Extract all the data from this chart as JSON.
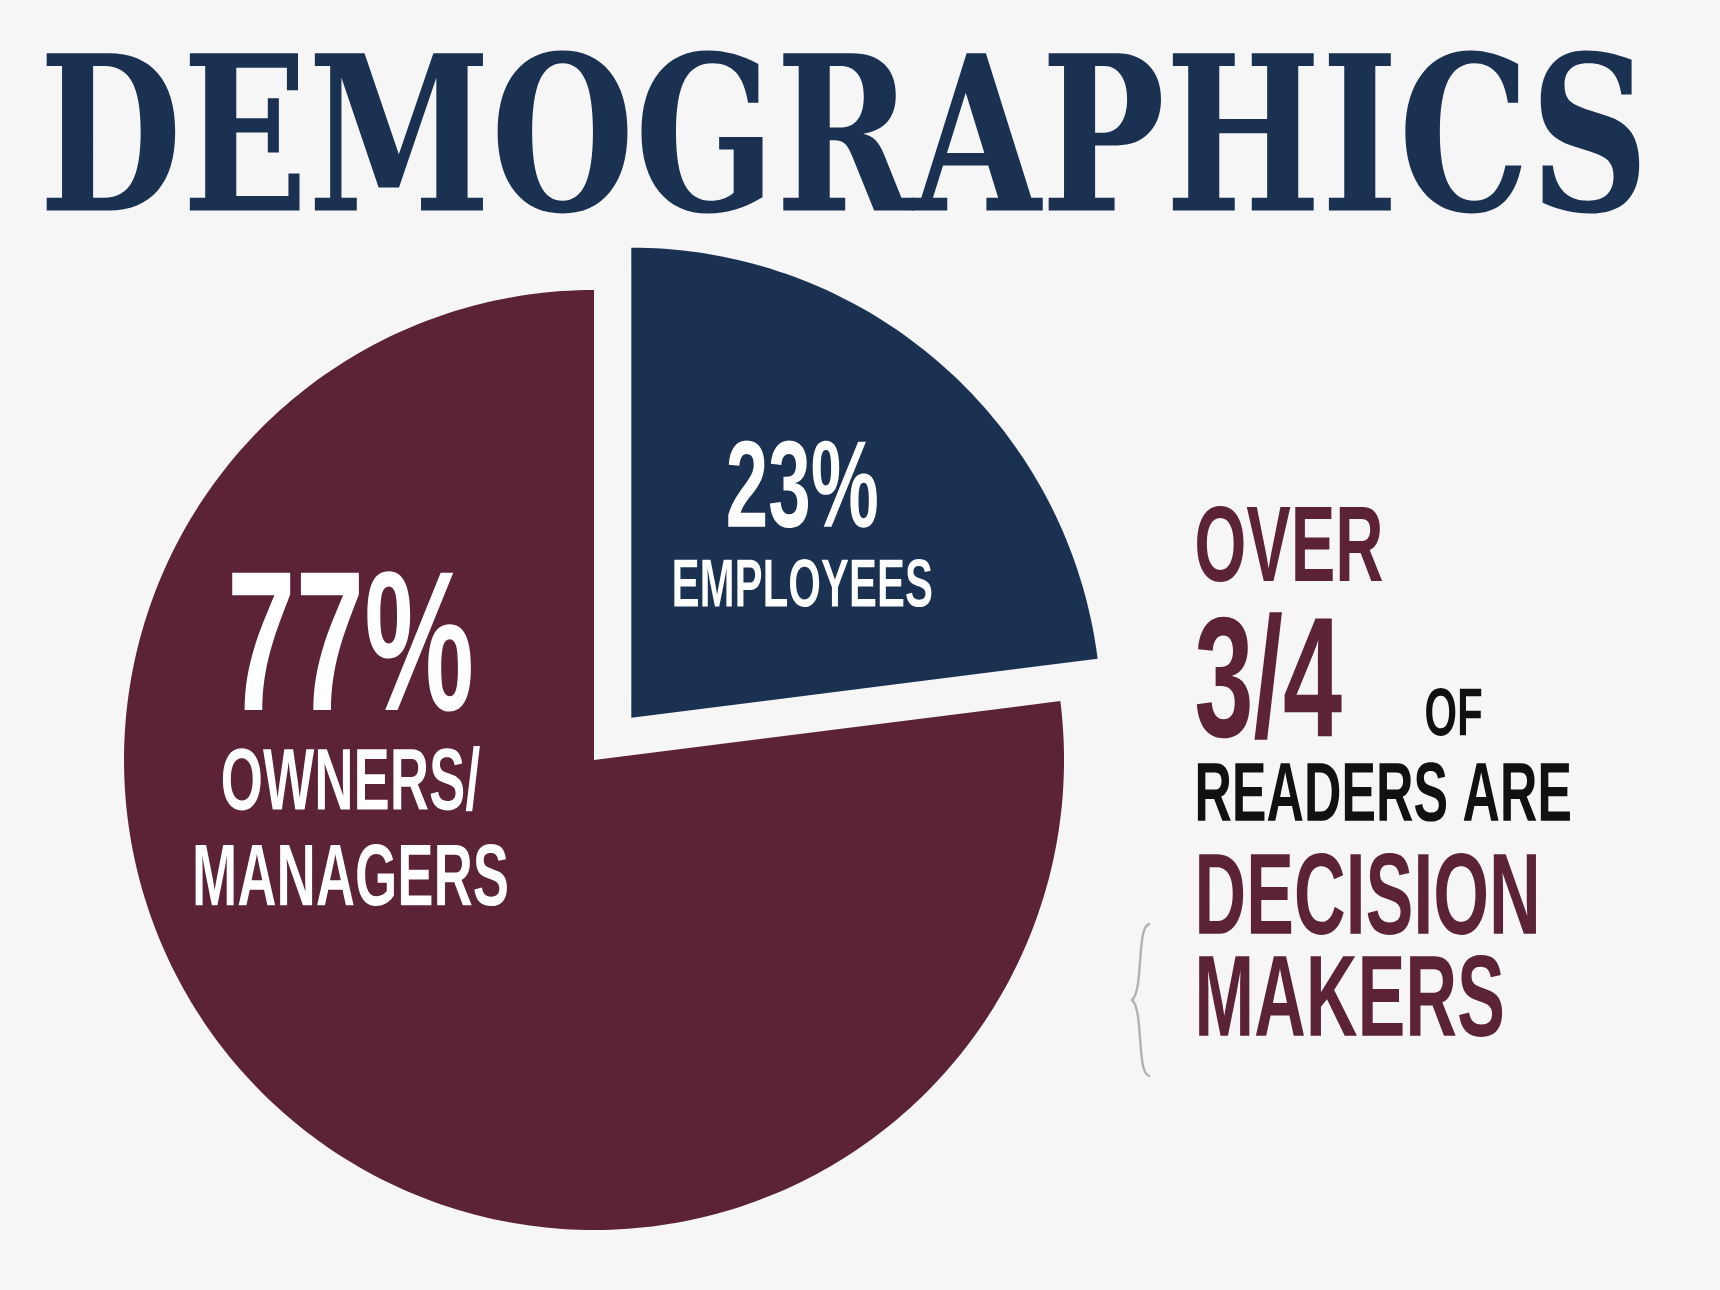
{
  "chart_data": {
    "type": "pie",
    "title": "DEMOGRAPHICS",
    "categories": [
      "EMPLOYEES",
      "OWNERS/ MANAGERS"
    ],
    "values": [
      23,
      77
    ],
    "colors": [
      "#1b3152",
      "#5c2237"
    ],
    "value_labels": [
      "23%",
      "77%"
    ],
    "annotations": [
      "OVER",
      "3/4",
      "OF",
      "READERS ARE",
      "DECISION",
      "MAKERS"
    ]
  }
}
